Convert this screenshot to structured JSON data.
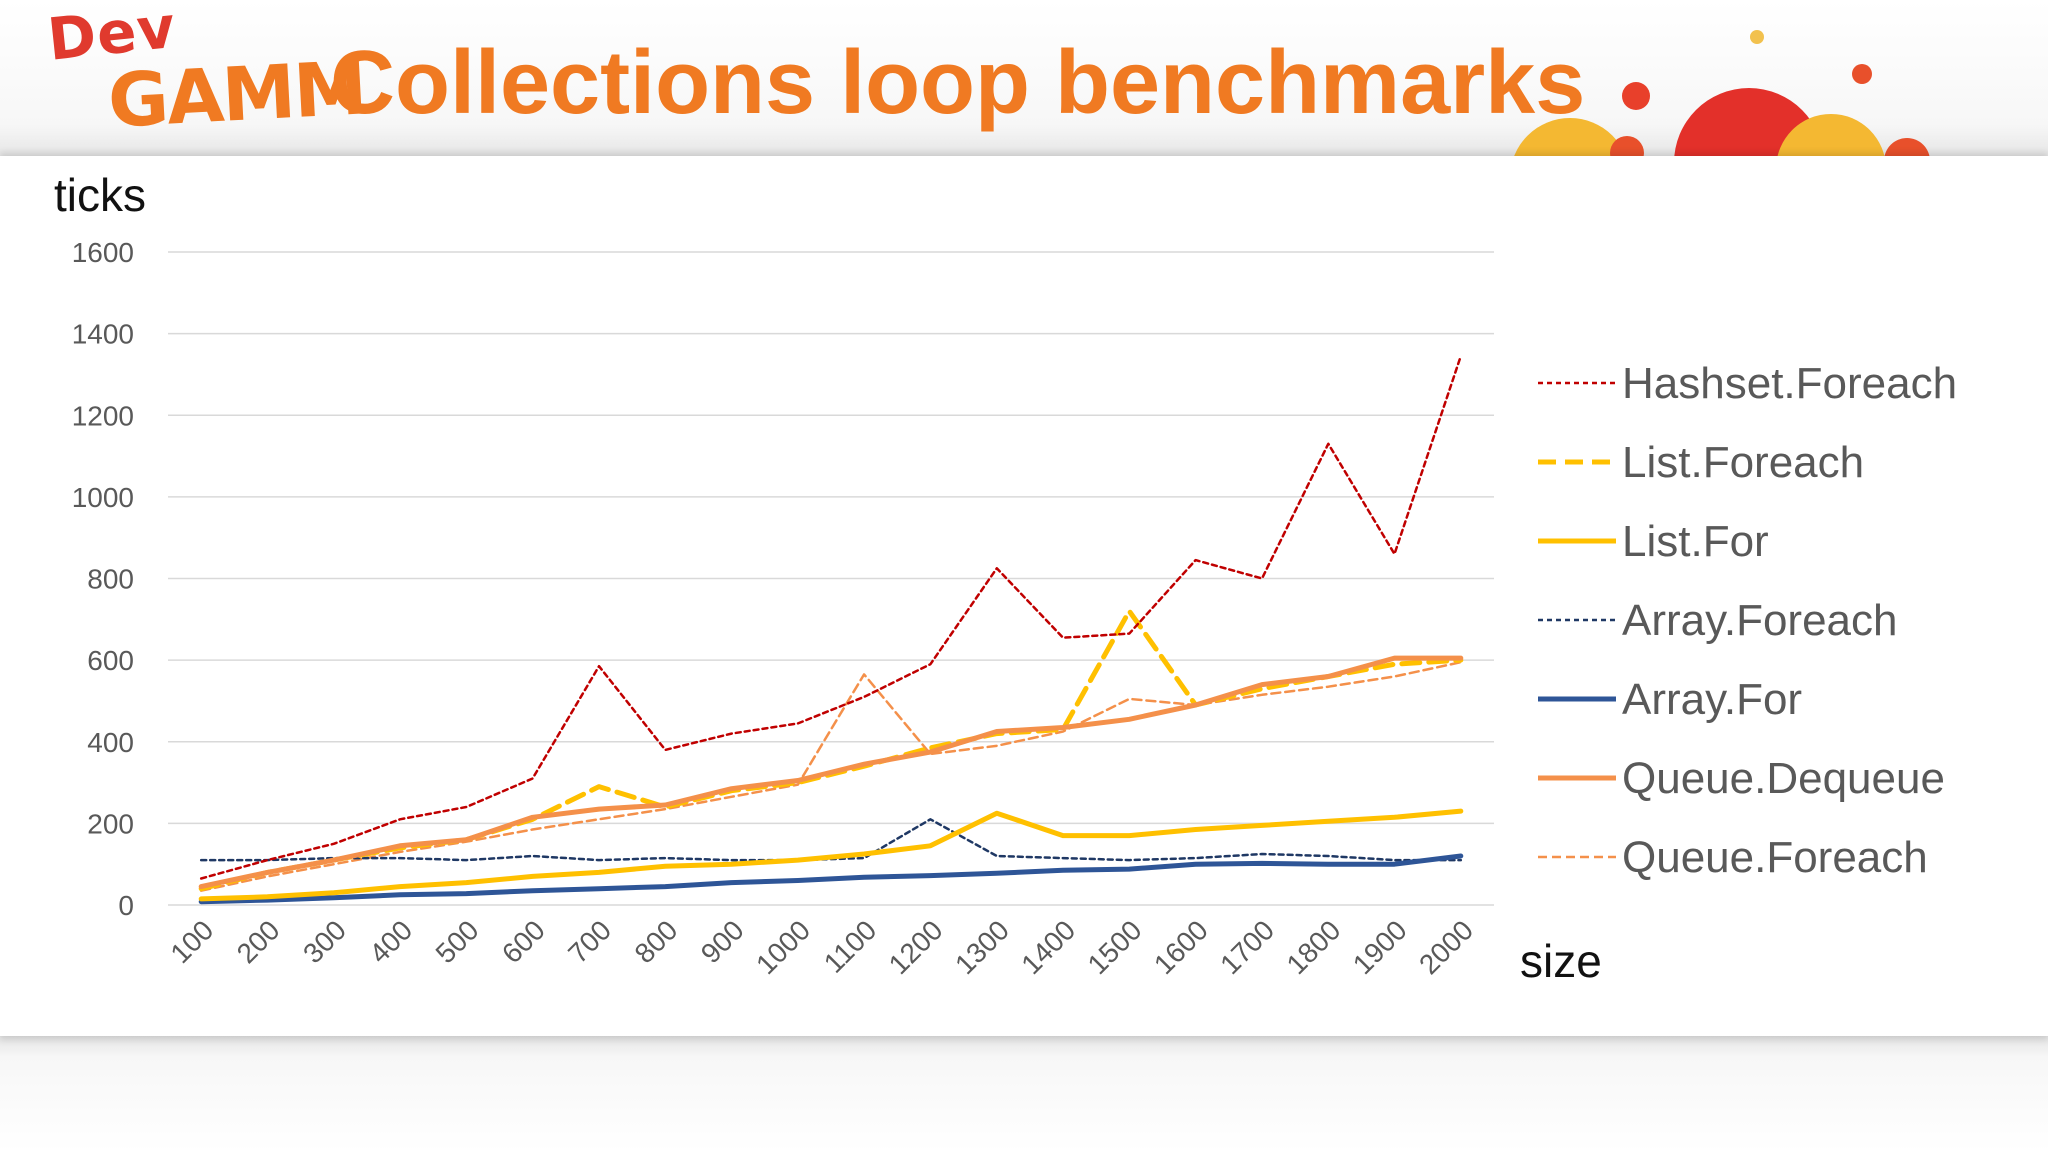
{
  "header": {
    "logo_top": "Dev",
    "logo_bottom": "GAMM",
    "title": "Collections loop benchmarks"
  },
  "colors": {
    "title": "#f07a22",
    "gridline": "#d9d9d9",
    "tick_text": "#595959"
  },
  "chart_data": {
    "type": "line",
    "title": "Collections loop benchmarks",
    "xlabel": "size",
    "ylabel": "ticks",
    "ylim": [
      0,
      1600
    ],
    "yticks": [
      0,
      200,
      400,
      600,
      800,
      1000,
      1200,
      1400,
      1600
    ],
    "grid": true,
    "legend": "right",
    "categories": [
      "100",
      "200",
      "300",
      "400",
      "500",
      "600",
      "700",
      "800",
      "900",
      "1000",
      "1100",
      "1200",
      "1300",
      "1400",
      "1500",
      "1600",
      "1700",
      "1800",
      "1900",
      "2000"
    ],
    "series": [
      {
        "name": "Hashset.Foreach",
        "color": "#c00000",
        "style": "dotted",
        "values": [
          65,
          110,
          150,
          210,
          240,
          310,
          585,
          380,
          420,
          445,
          510,
          590,
          825,
          655,
          665,
          845,
          800,
          1130,
          860,
          1345
        ]
      },
      {
        "name": "List.Foreach",
        "color": "#ffc000",
        "style": "dashed",
        "values": [
          40,
          80,
          110,
          140,
          160,
          210,
          290,
          240,
          280,
          300,
          340,
          385,
          420,
          430,
          720,
          490,
          530,
          560,
          590,
          600
        ]
      },
      {
        "name": "List.For",
        "color": "#ffc000",
        "style": "solid",
        "values": [
          15,
          20,
          30,
          45,
          55,
          70,
          80,
          95,
          100,
          110,
          125,
          145,
          225,
          170,
          170,
          185,
          195,
          205,
          215,
          230
        ]
      },
      {
        "name": "Array.Foreach",
        "color": "#1f3864",
        "style": "dotted",
        "values": [
          110,
          110,
          115,
          115,
          110,
          120,
          110,
          115,
          110,
          110,
          115,
          210,
          120,
          115,
          110,
          115,
          125,
          120,
          110,
          110
        ]
      },
      {
        "name": "Array.For",
        "color": "#2e5597",
        "style": "solid",
        "values": [
          8,
          12,
          18,
          25,
          28,
          35,
          40,
          45,
          55,
          60,
          68,
          72,
          78,
          85,
          88,
          100,
          102,
          100,
          100,
          120
        ]
      },
      {
        "name": "Queue.Dequeue",
        "color": "#f4904a",
        "style": "solid",
        "values": [
          45,
          80,
          110,
          145,
          160,
          215,
          235,
          245,
          285,
          305,
          345,
          375,
          425,
          435,
          455,
          490,
          540,
          560,
          605,
          605
        ]
      },
      {
        "name": "Queue.Foreach",
        "color": "#f4904a",
        "style": "thin-dashed",
        "values": [
          35,
          70,
          100,
          130,
          155,
          185,
          210,
          235,
          265,
          295,
          565,
          370,
          390,
          425,
          505,
          490,
          515,
          535,
          560,
          595
        ]
      }
    ]
  }
}
